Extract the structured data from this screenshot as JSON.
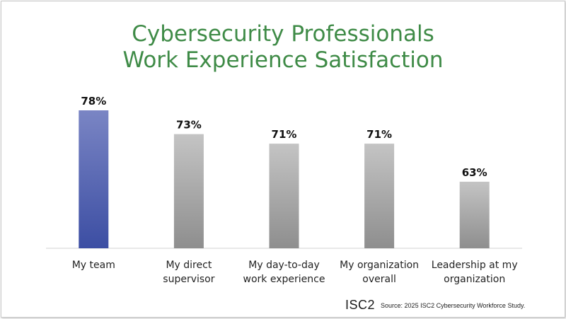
{
  "title": {
    "line1": "Cybersecurity Professionals",
    "line2": "Work Experience Satisfaction"
  },
  "footer": {
    "logo": "ISC2",
    "source": "Source: 2025 ISC2 Cybersecurity Workforce Study."
  },
  "colors": {
    "title": "#3f8b47",
    "highlight_top": "#7a85c4",
    "highlight_bottom": "#3c4ea3",
    "bar_top": "#c4c4c4",
    "bar_bottom": "#8e8e8e",
    "axis": "#d0d0d0"
  },
  "chart_data": {
    "type": "bar",
    "categories": [
      [
        "My team"
      ],
      [
        "My direct",
        "supervisor"
      ],
      [
        "My day-to-day",
        "work experience"
      ],
      [
        "My organization",
        "overall"
      ],
      [
        "Leadership at my",
        "organization"
      ]
    ],
    "values": [
      78,
      73,
      71,
      71,
      63
    ],
    "data_labels": [
      "78%",
      "73%",
      "71%",
      "71%",
      "63%"
    ],
    "highlighted_index": 0,
    "unit": "%",
    "ylim": [
      49,
      78
    ],
    "grid": false,
    "legend": "none",
    "xlabel": "",
    "ylabel": ""
  }
}
